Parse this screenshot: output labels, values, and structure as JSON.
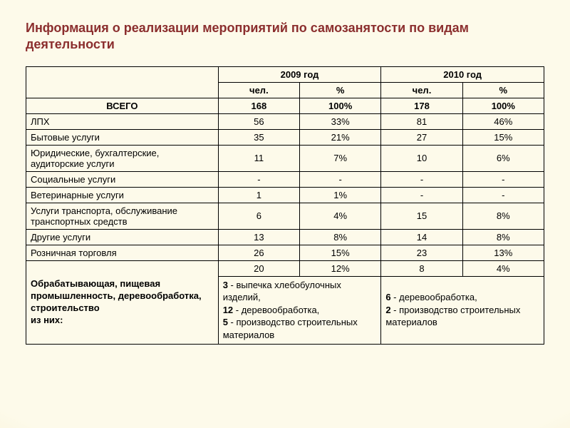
{
  "title": "Информация о реализации мероприятий по самозанятости по видам деятельности",
  "header": {
    "year1": "2009 год",
    "year2": "2010 год",
    "sub_people": "чел.",
    "sub_pct": "%"
  },
  "total": {
    "label": "ВСЕГО",
    "y1_people": "168",
    "y1_pct": "100%",
    "y2_people": "178",
    "y2_pct": "100%"
  },
  "rows": [
    {
      "label": "ЛПХ",
      "y1p": "56",
      "y1pc": "33%",
      "y2p": "81",
      "y2pc": "46%"
    },
    {
      "label": "Бытовые услуги",
      "y1p": "35",
      "y1pc": "21%",
      "y2p": "27",
      "y2pc": "15%"
    },
    {
      "label": "Юридические, бухгалтерские, аудиторские услуги",
      "y1p": "11",
      "y1pc": "7%",
      "y2p": "10",
      "y2pc": "6%"
    },
    {
      "label": "Социальные услуги",
      "y1p": "-",
      "y1pc": "-",
      "y2p": "-",
      "y2pc": "-"
    },
    {
      "label": "Ветеринарные услуги",
      "y1p": "1",
      "y1pc": "1%",
      "y2p": "-",
      "y2pc": "-"
    },
    {
      "label": "Услуги транспорта, обслуживание транспортных средств",
      "y1p": "6",
      "y1pc": "4%",
      "y2p": "15",
      "y2pc": "8%"
    },
    {
      "label": "Другие услуги",
      "y1p": "13",
      "y1pc": "8%",
      "y2p": "14",
      "y2pc": "8%"
    },
    {
      "label": "Розничная торговля",
      "y1p": "26",
      "y1pc": "15%",
      "y2p": "23",
      "y2pc": "13%"
    }
  ],
  "industry": {
    "top": {
      "y1p": "20",
      "y1pc": "12%",
      "y2p": "8",
      "y2pc": "4%"
    },
    "label_l1": "Обрабатывающая, пищевая",
    "label_l2": "промышленность, деревообработка,",
    "label_l3": "строительство",
    "label_l4": "из них:",
    "detail1_a_num": "3",
    "detail1_a_txt": " - выпечка хлебобулочных изделий,",
    "detail1_b_num": "12",
    "detail1_b_txt": " - деревообработка,",
    "detail1_c_num": "5",
    "detail1_c_txt": " - производство строительных материалов",
    "detail2_a_num": "6",
    "detail2_a_txt": " - деревообработка,",
    "detail2_b_num": "2",
    "detail2_b_txt": " - производство строительных материалов"
  },
  "colors": {
    "title": "#8b2e2e",
    "border": "#000000",
    "text": "#000000"
  }
}
